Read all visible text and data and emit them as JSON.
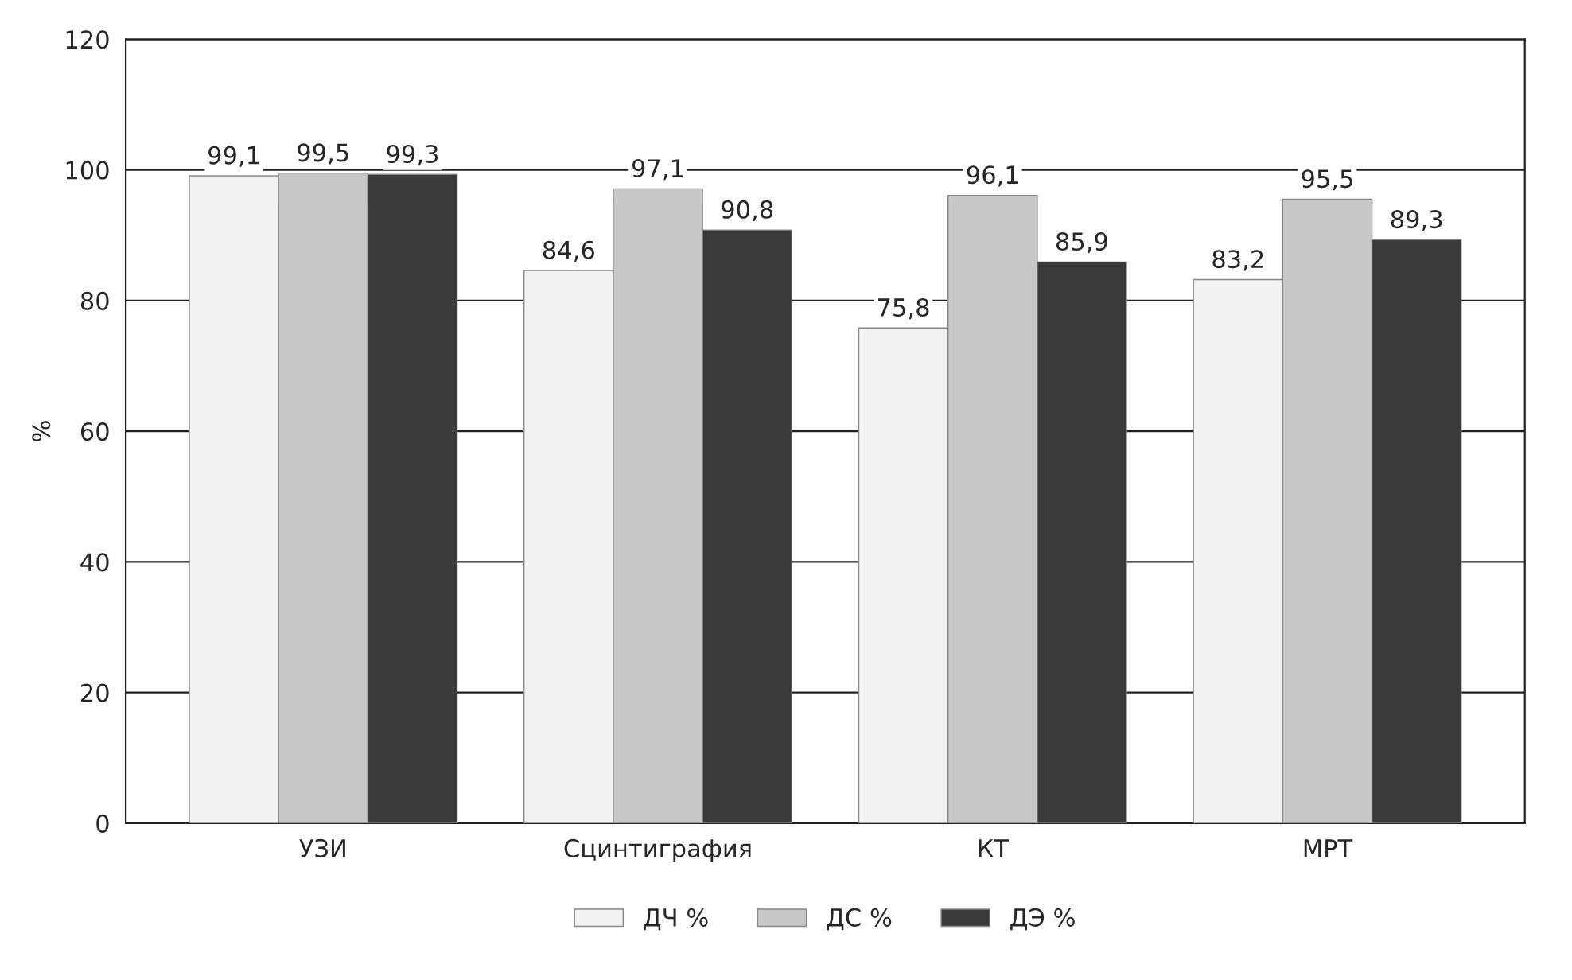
{
  "chart_data": {
    "type": "bar",
    "categories": [
      "УЗИ",
      "Сцинтиграфия",
      "КТ",
      "МРТ"
    ],
    "series": [
      {
        "name": "ДЧ %",
        "color": "#f2f2f2",
        "values": [
          99.1,
          84.6,
          75.8,
          83.2
        ],
        "value_labels": [
          "99,1",
          "84,6",
          "75,8",
          "83,2"
        ]
      },
      {
        "name": "ДС %",
        "color": "#c8c8c8",
        "values": [
          99.5,
          97.1,
          96.1,
          95.5
        ],
        "value_labels": [
          "99,5",
          "97,1",
          "96,1",
          "95,5"
        ]
      },
      {
        "name": "ДЭ %",
        "color": "#3a3a3a",
        "values": [
          99.3,
          90.8,
          85.9,
          89.3
        ],
        "value_labels": [
          "99,3",
          "90,8",
          "85,9",
          "89,3"
        ]
      }
    ],
    "ylabel": "%",
    "ylim": [
      0,
      120
    ],
    "yticks": [
      0,
      20,
      40,
      60,
      80,
      100,
      120
    ],
    "grid": "y",
    "legend": "bottom"
  }
}
